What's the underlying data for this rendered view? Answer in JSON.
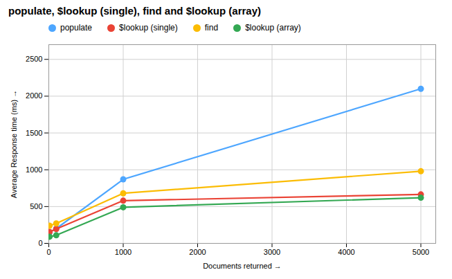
{
  "chart_data": {
    "type": "line",
    "title": "populate, $lookup (single), find and $lookup (array)",
    "xlabel": "Documents returned",
    "ylabel": "Average Response time (ms)",
    "x": [
      10,
      100,
      1000,
      5000
    ],
    "series": [
      {
        "name": "populate",
        "color": "#4da6ff",
        "values": [
          150,
          200,
          870,
          2100
        ]
      },
      {
        "name": "$lookup (single)",
        "color": "#ea4335",
        "values": [
          155,
          195,
          580,
          665
        ]
      },
      {
        "name": "find",
        "color": "#fbbc04",
        "values": [
          240,
          270,
          680,
          980
        ]
      },
      {
        "name": "$lookup (array)",
        "color": "#34a853",
        "values": [
          90,
          110,
          490,
          620
        ]
      }
    ],
    "xlim": [
      0,
      5200
    ],
    "ylim": [
      0,
      2700
    ],
    "xticks": [
      0,
      1000,
      2000,
      3000,
      4000,
      5000
    ],
    "yticks": [
      0,
      500,
      1000,
      1500,
      2000,
      2500
    ],
    "grid": true,
    "legend": "top",
    "marker": "circle"
  }
}
